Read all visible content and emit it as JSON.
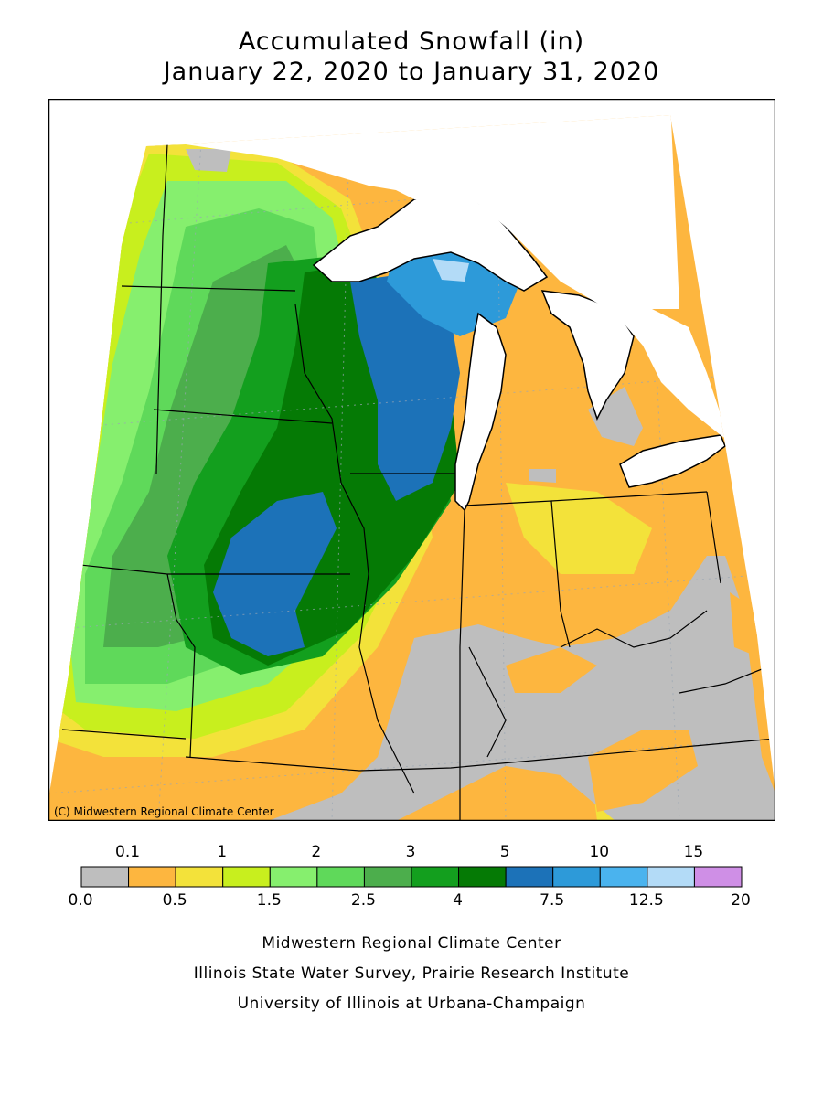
{
  "title_line1": "Accumulated Snowfall (in)",
  "title_line2": "January 22, 2020 to January 31, 2020",
  "map_copyright": "(C) Midwestern Regional Climate Center",
  "legend": {
    "bins": [
      {
        "color": "#bebebe"
      },
      {
        "color": "#fdb63f"
      },
      {
        "color": "#f3e23a"
      },
      {
        "color": "#c8ef1e"
      },
      {
        "color": "#86ef6e"
      },
      {
        "color": "#5fd95a"
      },
      {
        "color": "#4cae4c"
      },
      {
        "color": "#139f1e"
      },
      {
        "color": "#057a05"
      },
      {
        "color": "#1c72b8"
      },
      {
        "color": "#2d9ad9"
      },
      {
        "color": "#4ab3ee"
      },
      {
        "color": "#b3dbf7"
      },
      {
        "color": "#cf8fe6"
      }
    ],
    "top_labels": [
      "0.1",
      "1",
      "2",
      "3",
      "5",
      "10",
      "15"
    ],
    "bottom_labels": [
      "0.0",
      "0.5",
      "1.5",
      "2.5",
      "4",
      "7.5",
      "12.5",
      "20"
    ]
  },
  "credits": [
    "Midwestern Regional Climate Center",
    "Illinois State Water Survey, Prairie Research Institute",
    "University of Illinois at Urbana-Champaign"
  ]
}
